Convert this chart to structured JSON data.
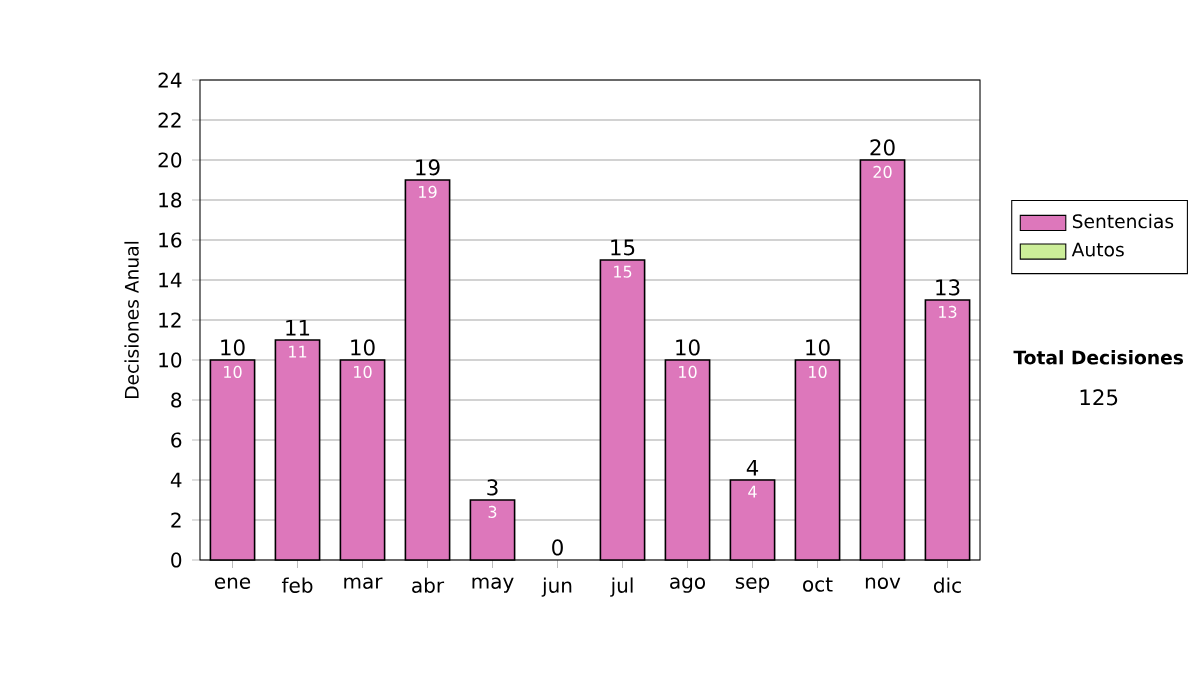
{
  "chart_data": {
    "type": "bar",
    "stacked": true,
    "ylabel": "Decisiones Anual",
    "categories": [
      "ene",
      "feb",
      "mar",
      "abr",
      "may",
      "jun",
      "jul",
      "ago",
      "sep",
      "oct",
      "nov",
      "dic"
    ],
    "series": [
      {
        "name": "Sentencias",
        "color": "#dd77bb",
        "values": [
          10,
          11,
          10,
          19,
          3,
          0,
          15,
          10,
          4,
          10,
          20,
          13
        ],
        "value_labels": [
          "10",
          "11",
          "10",
          "19",
          "3",
          null,
          "15",
          "10",
          "4",
          "10",
          "20",
          "13"
        ]
      },
      {
        "name": "Autos",
        "color": "#ccee99",
        "values": [
          0,
          0,
          0,
          0,
          0,
          0,
          0,
          0,
          0,
          0,
          0,
          0
        ]
      }
    ],
    "totals": [
      "10",
      "11",
      "10",
      "19",
      "3",
      "0",
      "15",
      "10",
      "4",
      "10",
      "20",
      "13"
    ],
    "ylim": [
      0,
      24
    ],
    "yticks": [
      0,
      2,
      4,
      6,
      8,
      10,
      12,
      14,
      16,
      18,
      20,
      22,
      24
    ],
    "grid": "y",
    "legend": "right",
    "annotations": [
      "Total Decisiones",
      "125"
    ]
  }
}
